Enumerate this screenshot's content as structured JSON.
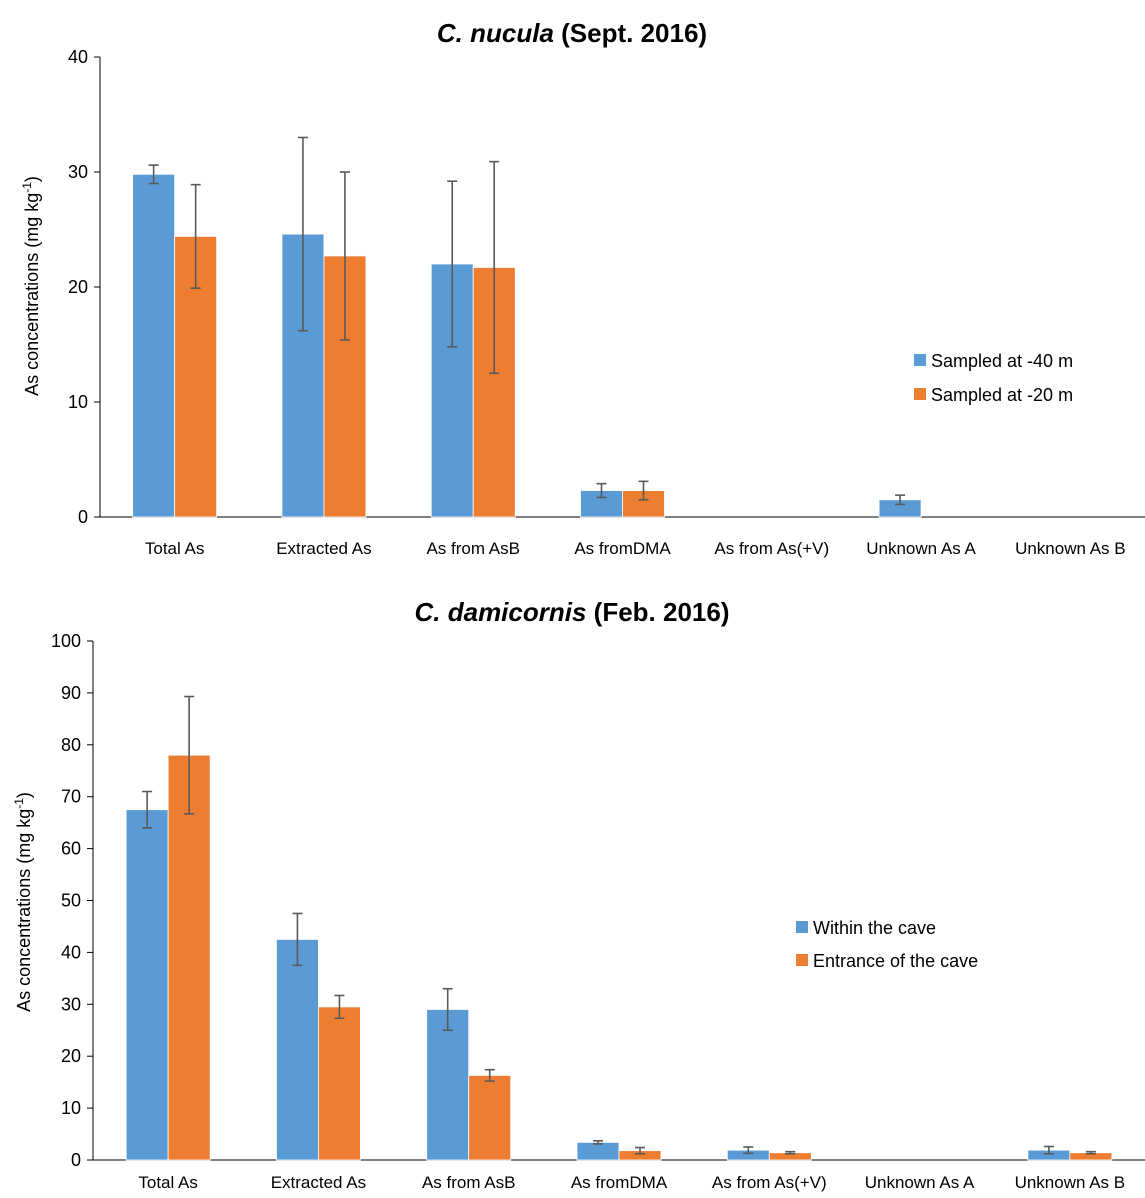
{
  "chart_data": [
    {
      "type": "bar",
      "title_italic": "C. nucula",
      "title_rest": " (Sept. 2016)",
      "ylabel_main": "As concentrations (mg kg",
      "ylabel_sup": "-1",
      "ylabel_end": ")",
      "ylim": [
        0,
        40
      ],
      "yticks": [
        "0",
        "10",
        "20",
        "30",
        "40"
      ],
      "ytick_values": [
        0,
        10,
        20,
        30,
        40
      ],
      "categories": [
        "Total As",
        "Extracted As",
        "As from AsB",
        "As fromDMA",
        "As from As(+V)",
        "Unknown As A",
        "Unknown As B"
      ],
      "series": [
        {
          "name": "Sampled at -40 m",
          "color": "#5B9BD5",
          "values": [
            29.8,
            24.6,
            22.0,
            2.3,
            0,
            1.5,
            0
          ],
          "errors": [
            0.8,
            8.4,
            7.2,
            0.6,
            0,
            0.4,
            0
          ]
        },
        {
          "name": "Sampled at -20 m",
          "color": "#ED7D31",
          "values": [
            24.4,
            22.7,
            21.7,
            2.3,
            0,
            0,
            0
          ],
          "errors": [
            4.5,
            7.3,
            9.2,
            0.8,
            0,
            0,
            0
          ]
        }
      ],
      "grid": false,
      "legend_position": "right"
    },
    {
      "type": "bar",
      "title_italic": "C. damicornis",
      "title_rest": " (Feb. 2016)",
      "ylabel_main": "As concentrations (mg kg",
      "ylabel_sup": "-1",
      "ylabel_end": ")",
      "ylim": [
        0,
        100
      ],
      "yticks": [
        "0",
        "10",
        "20",
        "30",
        "40",
        "50",
        "60",
        "70",
        "80",
        "90",
        "100"
      ],
      "ytick_values": [
        0,
        10,
        20,
        30,
        40,
        50,
        60,
        70,
        80,
        90,
        100
      ],
      "categories": [
        "Total As",
        "Extracted As",
        "As from AsB",
        "As fromDMA",
        "As from As(+V)",
        "Unknown As A",
        "Unknown As B"
      ],
      "series": [
        {
          "name": "Within the cave",
          "color": "#5B9BD5",
          "values": [
            67.5,
            42.5,
            29.0,
            3.4,
            1.9,
            0,
            1.9
          ],
          "errors": [
            3.5,
            5.0,
            4.0,
            0.3,
            0.6,
            0,
            0.7
          ]
        },
        {
          "name": "Entrance of the cave",
          "color": "#ED7D31",
          "values": [
            78.0,
            29.5,
            16.3,
            1.8,
            1.4,
            0,
            1.4
          ],
          "errors": [
            11.3,
            2.2,
            1.1,
            0.6,
            0.2,
            0,
            0.2
          ]
        }
      ],
      "grid": false,
      "legend_position": "right"
    }
  ]
}
